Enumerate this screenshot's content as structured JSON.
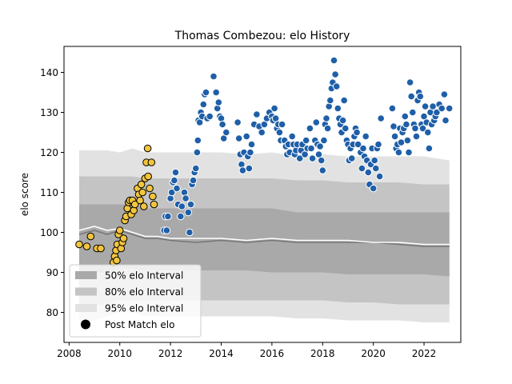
{
  "chart_data": {
    "type": "scatter",
    "title": "Thomas Combezou: elo History",
    "xlabel": "",
    "ylabel": "elo score",
    "xlim": [
      2007.8,
      2023.45
    ],
    "ylim": [
      72.5,
      146.5
    ],
    "x_ticks": [
      {
        "value": 2008,
        "label": "2008"
      },
      {
        "value": 2010,
        "label": "2010"
      },
      {
        "value": 2012,
        "label": "2012"
      },
      {
        "value": 2014,
        "label": "2014"
      },
      {
        "value": 2016,
        "label": "2016"
      },
      {
        "value": 2018,
        "label": "2018"
      },
      {
        "value": 2020,
        "label": "2020"
      },
      {
        "value": 2022,
        "label": "2022"
      }
    ],
    "y_ticks": [
      {
        "value": 80,
        "label": "80"
      },
      {
        "value": 90,
        "label": "90"
      },
      {
        "value": 100,
        "label": "100"
      },
      {
        "value": 110,
        "label": "110"
      },
      {
        "value": 120,
        "label": "120"
      },
      {
        "value": 130,
        "label": "130"
      },
      {
        "value": 140,
        "label": "140"
      }
    ],
    "grid": false,
    "legend": {
      "placement": "lower-left",
      "entries": [
        {
          "label": "50% elo Interval",
          "kind": "patch",
          "color": "#a9a9a9"
        },
        {
          "label": "80% elo Interval",
          "kind": "patch",
          "color": "#c4c4c4"
        },
        {
          "label": "95% elo Interval",
          "kind": "patch",
          "color": "#e2e2e2"
        },
        {
          "label": "Post Match elo",
          "kind": "marker",
          "color": "#000000"
        }
      ]
    },
    "intervals": {
      "x": [
        2008.4,
        2009.0,
        2009.5,
        2010.0,
        2010.5,
        2011.0,
        2011.5,
        2012.0,
        2013.0,
        2014.0,
        2015.0,
        2016.0,
        2017.0,
        2018.0,
        2019.0,
        2020.0,
        2021.0,
        2022.0,
        2023.0
      ],
      "p95": {
        "low": [
          77.5,
          78,
          79,
          80,
          80,
          79,
          79,
          79,
          79,
          79,
          79,
          79,
          78.5,
          78.5,
          78,
          78,
          78,
          77.5,
          77.5
        ],
        "high": [
          120.5,
          120.5,
          120.5,
          120,
          121,
          120,
          120,
          120,
          120,
          120,
          119.5,
          120,
          119,
          119.5,
          119,
          119,
          119,
          119,
          118
        ]
      },
      "p80": {
        "low": [
          81.5,
          82,
          82,
          83,
          83,
          83,
          83,
          83,
          83,
          83,
          83,
          83,
          83,
          83,
          82.5,
          82.5,
          82,
          82,
          82
        ]
      },
      "p80_high": [
        114,
        114,
        114,
        114,
        114,
        113.5,
        113.5,
        113.5,
        113.5,
        113.5,
        113.5,
        113.5,
        113,
        113,
        112.5,
        112.5,
        112.5,
        112,
        112
      ],
      "p50": {
        "low": [
          90,
          90,
          90,
          91,
          91,
          90.5,
          90.5,
          90.5,
          90.5,
          90.5,
          90.5,
          90,
          90,
          90,
          89.5,
          89.5,
          89.5,
          89.5,
          89
        ],
        "high": [
          107,
          107,
          107,
          107,
          107,
          106,
          106,
          106,
          106,
          106,
          106,
          106,
          105,
          105,
          105,
          105,
          105,
          105,
          105
        ]
      },
      "median": [
        99.5,
        100.5,
        99.5,
        100.5,
        99.5,
        98.5,
        98.5,
        98,
        97.5,
        98,
        97.5,
        98,
        97.5,
        97.5,
        97.5,
        97.5,
        97,
        96.5,
        96.5
      ],
      "median_white": [
        100.5,
        101.5,
        100.5,
        101,
        100,
        99,
        99,
        98.5,
        98.5,
        98.5,
        98,
        98.5,
        98,
        98,
        98,
        97.5,
        97.5,
        97,
        97
      ]
    },
    "series": [
      {
        "name": "Post Match elo (early)",
        "color": "#f2c53d",
        "edge": "#000000",
        "points": [
          [
            2008.4,
            97
          ],
          [
            2008.7,
            96.5
          ],
          [
            2008.85,
            99
          ],
          [
            2009.1,
            96
          ],
          [
            2009.25,
            96
          ],
          [
            2009.75,
            92.5
          ],
          [
            2009.8,
            94
          ],
          [
            2009.85,
            95.5
          ],
          [
            2009.9,
            97
          ],
          [
            2009.95,
            99.5
          ],
          [
            2009.88,
            93
          ],
          [
            2010.0,
            100.5
          ],
          [
            2010.05,
            96
          ],
          [
            2010.1,
            97.5
          ],
          [
            2010.15,
            98.5
          ],
          [
            2010.2,
            103
          ],
          [
            2010.25,
            104
          ],
          [
            2010.3,
            106
          ],
          [
            2010.35,
            107.5
          ],
          [
            2010.4,
            108
          ],
          [
            2010.45,
            104.5
          ],
          [
            2010.5,
            108
          ],
          [
            2010.55,
            105.5
          ],
          [
            2010.6,
            107
          ],
          [
            2010.7,
            111
          ],
          [
            2010.75,
            109.5
          ],
          [
            2010.8,
            108
          ],
          [
            2010.85,
            112
          ],
          [
            2010.9,
            110
          ],
          [
            2010.95,
            106.5
          ],
          [
            2011.0,
            113.5
          ],
          [
            2011.05,
            117.5
          ],
          [
            2011.1,
            121
          ],
          [
            2011.12,
            114
          ],
          [
            2011.18,
            111
          ],
          [
            2011.25,
            117.5
          ],
          [
            2011.3,
            109
          ],
          [
            2011.35,
            107
          ]
        ]
      },
      {
        "name": "Post Match elo (later)",
        "color": "#1f5fa8",
        "edge": "#ffffff",
        "points": [
          [
            2011.75,
            100.5
          ],
          [
            2011.8,
            104
          ],
          [
            2011.85,
            100.5
          ],
          [
            2011.9,
            104
          ],
          [
            2012.0,
            108.5
          ],
          [
            2012.05,
            110
          ],
          [
            2012.1,
            112.5
          ],
          [
            2012.15,
            113
          ],
          [
            2012.2,
            115
          ],
          [
            2012.25,
            111
          ],
          [
            2012.3,
            107
          ],
          [
            2012.4,
            104
          ],
          [
            2012.45,
            106.5
          ],
          [
            2012.55,
            110
          ],
          [
            2012.6,
            108.5
          ],
          [
            2012.7,
            105
          ],
          [
            2012.75,
            100
          ],
          [
            2012.8,
            107
          ],
          [
            2012.85,
            112
          ],
          [
            2012.9,
            113
          ],
          [
            2012.95,
            115
          ],
          [
            2013.0,
            116
          ],
          [
            2013.05,
            120
          ],
          [
            2013.08,
            123
          ],
          [
            2013.1,
            128
          ],
          [
            2013.15,
            127.5
          ],
          [
            2013.2,
            130
          ],
          [
            2013.25,
            129
          ],
          [
            2013.3,
            132
          ],
          [
            2013.35,
            134.5
          ],
          [
            2013.4,
            135
          ],
          [
            2013.45,
            128.5
          ],
          [
            2013.55,
            129
          ],
          [
            2013.7,
            139
          ],
          [
            2013.8,
            135
          ],
          [
            2013.85,
            131
          ],
          [
            2013.9,
            132.5
          ],
          [
            2013.95,
            129
          ],
          [
            2014.0,
            128.5
          ],
          [
            2014.05,
            127
          ],
          [
            2014.1,
            123.5
          ],
          [
            2014.2,
            125
          ],
          [
            2014.65,
            127.5
          ],
          [
            2014.7,
            123.5
          ],
          [
            2014.75,
            119.5
          ],
          [
            2014.8,
            117
          ],
          [
            2014.85,
            115.5
          ],
          [
            2014.9,
            120
          ],
          [
            2015.0,
            124
          ],
          [
            2015.05,
            119
          ],
          [
            2015.1,
            116
          ],
          [
            2015.15,
            120
          ],
          [
            2015.2,
            122
          ],
          [
            2015.3,
            127
          ],
          [
            2015.4,
            129.5
          ],
          [
            2015.5,
            126.5
          ],
          [
            2015.6,
            125
          ],
          [
            2015.7,
            127
          ],
          [
            2015.8,
            128.5
          ],
          [
            2015.9,
            130
          ],
          [
            2016.0,
            129
          ],
          [
            2016.05,
            128
          ],
          [
            2016.1,
            131
          ],
          [
            2016.15,
            128.5
          ],
          [
            2016.2,
            126
          ],
          [
            2016.25,
            127
          ],
          [
            2016.3,
            125
          ],
          [
            2016.35,
            123
          ],
          [
            2016.4,
            127
          ],
          [
            2016.5,
            123
          ],
          [
            2016.55,
            121.5
          ],
          [
            2016.6,
            119.5
          ],
          [
            2016.65,
            122
          ],
          [
            2016.7,
            120
          ],
          [
            2016.8,
            124
          ],
          [
            2016.85,
            122
          ],
          [
            2016.9,
            119.5
          ],
          [
            2016.95,
            120.5
          ],
          [
            2017.0,
            122
          ],
          [
            2017.1,
            118.5
          ],
          [
            2017.15,
            120.5
          ],
          [
            2017.2,
            122
          ],
          [
            2017.3,
            119.5
          ],
          [
            2017.35,
            123
          ],
          [
            2017.4,
            121
          ],
          [
            2017.5,
            126
          ],
          [
            2017.55,
            121
          ],
          [
            2017.6,
            118.5
          ],
          [
            2017.7,
            123
          ],
          [
            2017.75,
            127.5
          ],
          [
            2017.8,
            122
          ],
          [
            2017.85,
            119.5
          ],
          [
            2017.9,
            121.5
          ],
          [
            2017.95,
            118
          ],
          [
            2018.0,
            115.5
          ],
          [
            2018.05,
            123
          ],
          [
            2018.1,
            127
          ],
          [
            2018.15,
            128.5
          ],
          [
            2018.2,
            126
          ],
          [
            2018.25,
            131.5
          ],
          [
            2018.3,
            133
          ],
          [
            2018.35,
            136
          ],
          [
            2018.4,
            137.5
          ],
          [
            2018.45,
            143
          ],
          [
            2018.5,
            139.5
          ],
          [
            2018.55,
            136.5
          ],
          [
            2018.6,
            131
          ],
          [
            2018.65,
            128.5
          ],
          [
            2018.7,
            127
          ],
          [
            2018.75,
            125
          ],
          [
            2018.8,
            128
          ],
          [
            2018.85,
            133
          ],
          [
            2018.9,
            126
          ],
          [
            2018.95,
            123
          ],
          [
            2019.0,
            122
          ],
          [
            2019.05,
            118
          ],
          [
            2019.1,
            121
          ],
          [
            2019.15,
            118.5
          ],
          [
            2019.2,
            122
          ],
          [
            2019.25,
            124
          ],
          [
            2019.3,
            126
          ],
          [
            2019.35,
            125
          ],
          [
            2019.4,
            122
          ],
          [
            2019.5,
            120
          ],
          [
            2019.55,
            116
          ],
          [
            2019.6,
            121
          ],
          [
            2019.65,
            119
          ],
          [
            2019.7,
            124
          ],
          [
            2019.75,
            118
          ],
          [
            2019.8,
            115
          ],
          [
            2019.85,
            112
          ],
          [
            2019.9,
            117
          ],
          [
            2019.95,
            121
          ],
          [
            2020.0,
            111
          ],
          [
            2020.05,
            118
          ],
          [
            2020.1,
            116
          ],
          [
            2020.15,
            121
          ],
          [
            2020.2,
            122
          ],
          [
            2020.25,
            114
          ],
          [
            2020.3,
            128.5
          ],
          [
            2020.75,
            131
          ],
          [
            2020.8,
            126.5
          ],
          [
            2020.85,
            124
          ],
          [
            2020.9,
            121
          ],
          [
            2020.95,
            122
          ],
          [
            2021.0,
            120
          ],
          [
            2021.05,
            126
          ],
          [
            2021.1,
            122.5
          ],
          [
            2021.15,
            125
          ],
          [
            2021.2,
            126
          ],
          [
            2021.25,
            129
          ],
          [
            2021.3,
            127
          ],
          [
            2021.35,
            123
          ],
          [
            2021.4,
            120
          ],
          [
            2021.45,
            137.5
          ],
          [
            2021.5,
            134
          ],
          [
            2021.55,
            130
          ],
          [
            2021.6,
            127
          ],
          [
            2021.65,
            126
          ],
          [
            2021.7,
            124
          ],
          [
            2021.75,
            133
          ],
          [
            2021.8,
            135
          ],
          [
            2021.85,
            134
          ],
          [
            2021.9,
            127
          ],
          [
            2021.95,
            126
          ],
          [
            2022.0,
            129
          ],
          [
            2022.05,
            131.5
          ],
          [
            2022.1,
            127.5
          ],
          [
            2022.15,
            125
          ],
          [
            2022.2,
            121
          ],
          [
            2022.25,
            130
          ],
          [
            2022.3,
            127
          ],
          [
            2022.35,
            131.5
          ],
          [
            2022.4,
            128
          ],
          [
            2022.45,
            129
          ],
          [
            2022.5,
            130
          ],
          [
            2022.6,
            132
          ],
          [
            2022.7,
            131
          ],
          [
            2022.8,
            134.5
          ],
          [
            2022.85,
            128
          ],
          [
            2023.0,
            131
          ]
        ]
      }
    ]
  }
}
